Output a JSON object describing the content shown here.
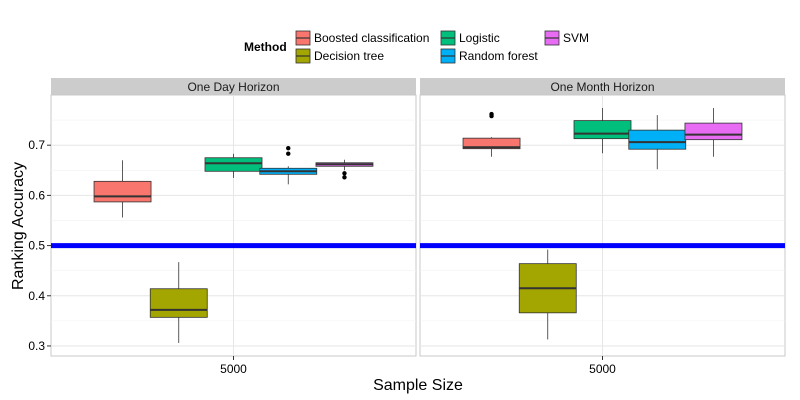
{
  "chart_data": {
    "type": "box",
    "ylabel": "Ranking Accuracy",
    "xlabel": "Sample Size",
    "ylim": [
      0.28,
      0.8
    ],
    "yticks": [
      0.3,
      0.4,
      0.5,
      0.6,
      0.7
    ],
    "ytick_labels": [
      "0.3",
      "0.4",
      "0.5",
      "0.6",
      "0.7"
    ],
    "x_tick_label": "5000",
    "reference_line": {
      "y": 0.5,
      "color": "#0000ff"
    },
    "grid": true,
    "legend": {
      "title": "Method",
      "position": "top",
      "entries": [
        {
          "label": "Boosted classification",
          "color": "#f8766d"
        },
        {
          "label": "Decision tree",
          "color": "#a3a500"
        },
        {
          "label": "Logistic",
          "color": "#00bf7d"
        },
        {
          "label": "Random forest",
          "color": "#00b0f6"
        },
        {
          "label": "SVM",
          "color": "#e76bf3"
        }
      ]
    },
    "panels": [
      {
        "title": "One Day Horizon",
        "boxes": [
          {
            "method": "Boosted classification",
            "min": 0.556,
            "q1": 0.587,
            "median": 0.598,
            "q3": 0.628,
            "max": 0.67,
            "outliers": []
          },
          {
            "method": "Decision tree",
            "min": 0.306,
            "q1": 0.357,
            "median": 0.372,
            "q3": 0.414,
            "max": 0.467,
            "outliers": []
          },
          {
            "method": "Logistic",
            "min": 0.635,
            "q1": 0.648,
            "median": 0.664,
            "q3": 0.675,
            "max": 0.683,
            "outliers": []
          },
          {
            "method": "Random forest",
            "min": 0.622,
            "q1": 0.642,
            "median": 0.648,
            "q3": 0.654,
            "max": 0.658,
            "outliers": [
              0.683,
              0.694
            ]
          },
          {
            "method": "SVM",
            "min": 0.65,
            "q1": 0.658,
            "median": 0.662,
            "q3": 0.665,
            "max": 0.671,
            "outliers": [
              0.636,
              0.644
            ]
          }
        ]
      },
      {
        "title": "One Month Horizon",
        "boxes": [
          {
            "method": "Boosted classification",
            "min": 0.677,
            "q1": 0.693,
            "median": 0.696,
            "q3": 0.714,
            "max": 0.716,
            "outliers": [
              0.758,
              0.762
            ]
          },
          {
            "method": "Decision tree",
            "min": 0.313,
            "q1": 0.366,
            "median": 0.415,
            "q3": 0.464,
            "max": 0.492,
            "outliers": []
          },
          {
            "method": "Logistic",
            "min": 0.684,
            "q1": 0.713,
            "median": 0.723,
            "q3": 0.749,
            "max": 0.774,
            "outliers": []
          },
          {
            "method": "Random forest",
            "min": 0.652,
            "q1": 0.692,
            "median": 0.706,
            "q3": 0.73,
            "max": 0.76,
            "outliers": []
          },
          {
            "method": "SVM",
            "min": 0.677,
            "q1": 0.711,
            "median": 0.721,
            "q3": 0.744,
            "max": 0.774,
            "outliers": []
          }
        ]
      }
    ]
  }
}
